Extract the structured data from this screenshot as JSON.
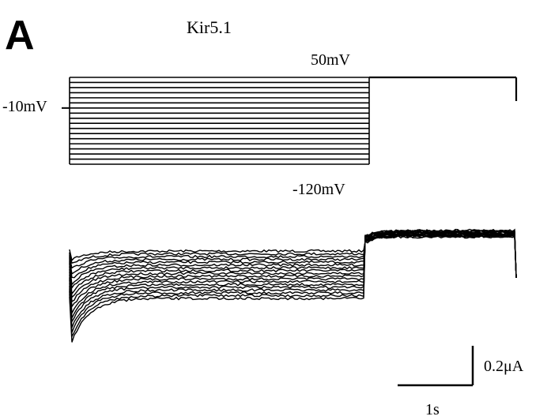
{
  "panel": {
    "letter": "A",
    "title": "Kir5.1"
  },
  "colors": {
    "ink": "#000000",
    "background": "#ffffff"
  },
  "chart_data": [
    {
      "type": "line",
      "name": "voltage-protocol",
      "holding_mV": -10,
      "steps_mV": {
        "from": -120,
        "to": 50,
        "count": 18
      },
      "tail_mV": 50,
      "labels": {
        "top": "50mV",
        "holding": "-10mV",
        "bottom": "-120mV"
      }
    },
    {
      "type": "line",
      "name": "current-traces",
      "sweeps": 18,
      "phases": [
        "step",
        "tail"
      ],
      "grid": false,
      "legend": "none"
    }
  ],
  "scalebar": {
    "current_label": "0.2μA",
    "time_label": "1s"
  }
}
